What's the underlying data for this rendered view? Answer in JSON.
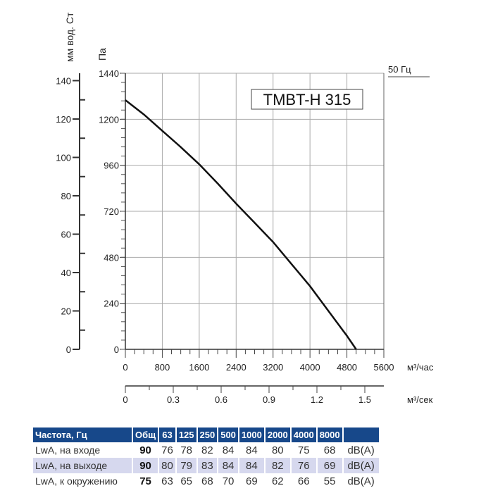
{
  "chart_data": {
    "type": "line",
    "model_label": "TMBT-H 315",
    "frequency_label": "50 Гц",
    "y_axis_pa": {
      "label": "Па",
      "ticks": [
        0,
        240,
        480,
        720,
        960,
        1200,
        1440
      ],
      "range": [
        0,
        1440
      ]
    },
    "y_axis_mm": {
      "label": "мм вод. Ст",
      "ticks": [
        0,
        20,
        40,
        60,
        80,
        100,
        120,
        140
      ]
    },
    "x_axis_m3h": {
      "label": "м³/час",
      "ticks": [
        0,
        800,
        1600,
        2400,
        3200,
        4000,
        4800,
        5600
      ],
      "range": [
        0,
        5600
      ]
    },
    "x_axis_m3s": {
      "label": "м³/сек",
      "ticks": [
        0,
        0.3,
        0.6,
        0.9,
        1.2,
        1.5
      ]
    },
    "grid": true,
    "series": [
      {
        "x": [
          0,
          400,
          800,
          1200,
          1600,
          2000,
          2400,
          2800,
          3200,
          3600,
          4000,
          4400,
          4800,
          5000
        ],
        "y": [
          1300,
          1225,
          1140,
          1055,
          965,
          865,
          760,
          660,
          560,
          445,
          330,
          200,
          70,
          0
        ]
      }
    ]
  },
  "table": {
    "headers": [
      "Частота, Гц",
      "Общ",
      "63",
      "125",
      "250",
      "500",
      "1000",
      "2000",
      "4000",
      "8000",
      ""
    ],
    "rows": [
      {
        "label": "LwA, на входе",
        "total": "90",
        "values": [
          "76",
          "78",
          "82",
          "84",
          "84",
          "80",
          "75",
          "68"
        ],
        "unit": "dB(A)"
      },
      {
        "label": "LwA, на выходе",
        "total": "90",
        "values": [
          "80",
          "79",
          "83",
          "84",
          "84",
          "82",
          "76",
          "69"
        ],
        "unit": "dB(A)"
      },
      {
        "label": "LwA, к окружению",
        "total": "75",
        "values": [
          "63",
          "65",
          "68",
          "70",
          "69",
          "62",
          "66",
          "55"
        ],
        "unit": "dB(A)"
      }
    ]
  },
  "colors": {
    "header_bg": "#17488a",
    "alt_row": "#d6d8ee",
    "curve": "#111111"
  }
}
